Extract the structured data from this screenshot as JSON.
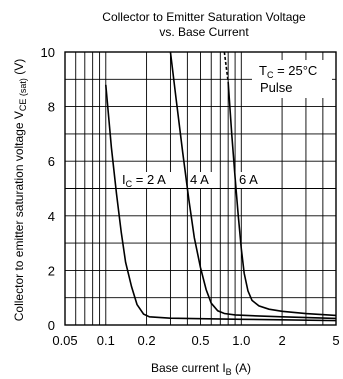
{
  "chart_data": {
    "type": "line",
    "title": "Collector to Emitter Saturation Voltage",
    "subtitle": "vs. Base Current",
    "xlabel": {
      "main": "Base current ",
      "symbol": "I",
      "subscript": "B",
      "unit": " (A)"
    },
    "ylabel": {
      "main": "Collector to emitter saturation voltage ",
      "symbol": "V",
      "subscript": "CE (sat)",
      "unit": " (V)"
    },
    "x_scale": "log",
    "xlim": [
      0.05,
      5
    ],
    "ylim": [
      0,
      10
    ],
    "grid": true,
    "x_tick_labels": [
      "0.05",
      "0.1",
      "0.2",
      "0.5",
      "1.0",
      "2",
      "5"
    ],
    "y_tick_labels": [
      "0",
      "2",
      "4",
      "6",
      "8",
      "10"
    ],
    "annotations": {
      "temperature": {
        "symbol": "T",
        "subscript": "C",
        "value": " = 25°C"
      },
      "mode": "Pulse"
    },
    "series": [
      {
        "label_symbol": "I",
        "label_subscript": "C",
        "label_value": " = 2 A",
        "points": [
          [
            0.1,
            8.8
          ],
          [
            0.11,
            6.5
          ],
          [
            0.12,
            4.8
          ],
          [
            0.13,
            3.4
          ],
          [
            0.14,
            2.3
          ],
          [
            0.155,
            1.4
          ],
          [
            0.17,
            0.75
          ],
          [
            0.19,
            0.4
          ],
          [
            0.21,
            0.3
          ],
          [
            0.3,
            0.25
          ],
          [
            0.5,
            0.23
          ],
          [
            1.0,
            0.21
          ],
          [
            2.0,
            0.19
          ],
          [
            5.0,
            0.16
          ]
        ]
      },
      {
        "label_value": "4 A",
        "points": [
          [
            0.3,
            10.0
          ],
          [
            0.33,
            8.3
          ],
          [
            0.37,
            6.3
          ],
          [
            0.41,
            4.6
          ],
          [
            0.45,
            3.2
          ],
          [
            0.5,
            2.1
          ],
          [
            0.55,
            1.3
          ],
          [
            0.6,
            0.8
          ],
          [
            0.67,
            0.52
          ],
          [
            0.75,
            0.42
          ],
          [
            0.9,
            0.37
          ],
          [
            1.2,
            0.34
          ],
          [
            2.0,
            0.3
          ],
          [
            5.0,
            0.24
          ]
        ]
      },
      {
        "label_value": "6 A",
        "dashed_points": [
          [
            0.75,
            10.0
          ],
          [
            0.8,
            8.9
          ]
        ],
        "points": [
          [
            0.8,
            8.9
          ],
          [
            0.85,
            7.0
          ],
          [
            0.9,
            5.4
          ],
          [
            0.95,
            4.0
          ],
          [
            1.0,
            2.8
          ],
          [
            1.05,
            1.9
          ],
          [
            1.12,
            1.25
          ],
          [
            1.2,
            0.9
          ],
          [
            1.35,
            0.7
          ],
          [
            1.6,
            0.58
          ],
          [
            2.0,
            0.5
          ],
          [
            3.0,
            0.42
          ],
          [
            5.0,
            0.35
          ]
        ]
      }
    ]
  }
}
